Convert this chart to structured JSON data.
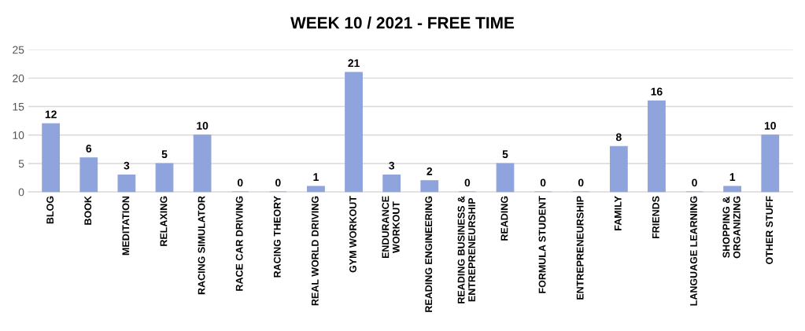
{
  "chart_data": {
    "type": "bar",
    "title": "WEEK 10 / 2021 - FREE TIME",
    "categories": [
      "BLOG",
      "BOOK",
      "MEDITATION",
      "RELAXING",
      "RACING SIMULATOR",
      "RACE CAR DRIVING",
      "RACING THEORY",
      "REAL WORLD DRIVING",
      "GYM WORKOUT",
      "ENDURANCE\nWORKOUT",
      "READING ENGINEERING",
      "READING BUSINESS &\nENTREPRENEURSHIP",
      "READING",
      "FORMULA STUDENT",
      "ENTREPRENEURSHIP",
      "FAMILY",
      "FRIENDS",
      "LANGUAGE LEARNING",
      "SHOPPING &\nORGANIZING",
      "OTHER STUFF"
    ],
    "values": [
      12,
      6,
      3,
      5,
      10,
      0,
      0,
      1,
      21,
      3,
      2,
      0,
      5,
      0,
      0,
      8,
      16,
      0,
      1,
      10
    ],
    "color": "#8fa3dc",
    "ylim": [
      0,
      25
    ],
    "yticks": [
      0,
      5,
      10,
      15,
      20,
      25
    ],
    "grid": "y",
    "data_labels": true
  }
}
